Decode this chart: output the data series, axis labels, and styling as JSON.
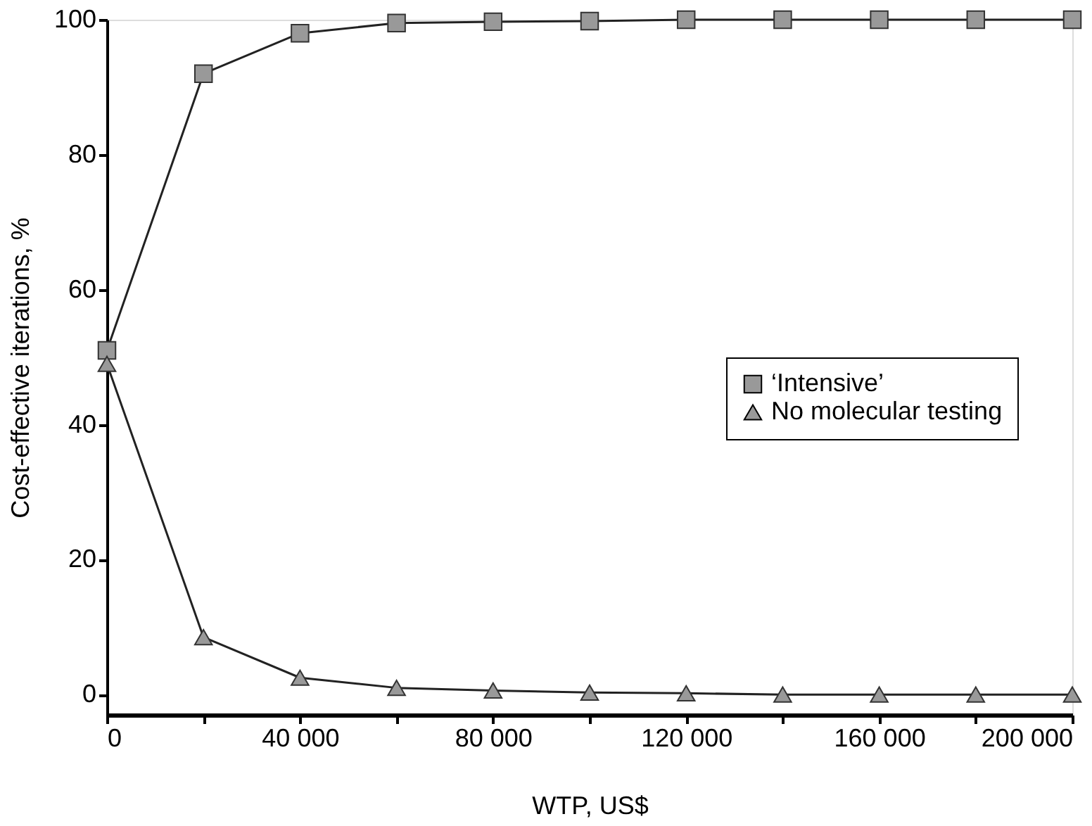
{
  "chart_data": {
    "type": "line",
    "xlabel": "WTP, US$",
    "ylabel": "Cost-effective iterations, %",
    "x": [
      0,
      20000,
      40000,
      60000,
      80000,
      100000,
      120000,
      140000,
      160000,
      180000,
      200000
    ],
    "series": [
      {
        "name": "‘Intensive’",
        "color": "#999999",
        "marker": "square",
        "values": [
          51,
          92,
          98,
          99.5,
          99.7,
          99.8,
          100,
          100,
          100,
          100,
          100
        ]
      },
      {
        "name": "No molecular testing",
        "color": "#999999",
        "marker": "triangle",
        "values": [
          49,
          8.5,
          2.5,
          1,
          0.6,
          0.3,
          0.2,
          0,
          0,
          0,
          0
        ]
      }
    ],
    "xlim": [
      0,
      200000
    ],
    "ylim": [
      -3,
      100
    ],
    "xticks": [
      0,
      {
        "value": 20000,
        "label": null
      },
      {
        "value": 40000,
        "label": "40 000"
      },
      {
        "value": 60000,
        "label": null
      },
      {
        "value": 80000,
        "label": "80 000"
      },
      {
        "value": 100000,
        "label": null
      },
      {
        "value": 120000,
        "label": "120 000"
      },
      {
        "value": 140000,
        "label": null
      },
      {
        "value": 160000,
        "label": "160 000"
      },
      {
        "value": 180000,
        "label": null
      },
      {
        "value": 200000,
        "label": "200 000"
      }
    ],
    "yticks": [
      0,
      20,
      40,
      60,
      80,
      100
    ],
    "grid": false,
    "legend": "right",
    "line_style": "solid"
  }
}
